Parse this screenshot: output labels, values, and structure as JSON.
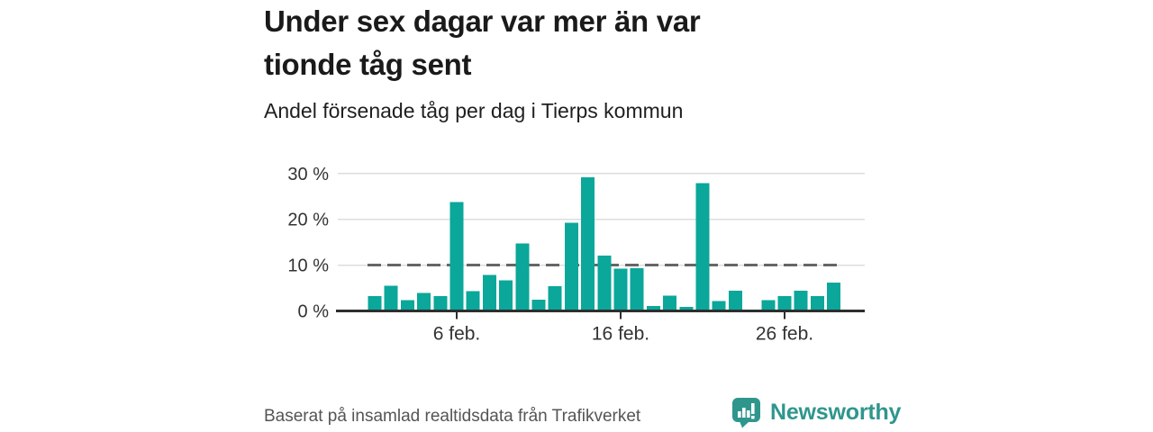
{
  "header": {
    "title": "Under sex dagar var mer än var tionde tåg sent",
    "subtitle": "Andel försenade tåg per dag i Tierps kommun"
  },
  "footer": {
    "source": "Baserat på insamlad realtidsdata från Trafikverket",
    "brand": "Newsworthy"
  },
  "colors": {
    "bar": "#0aa79a",
    "brand_teal": "#2f968d",
    "grid": "#dcdcdc",
    "axis": "#2e2e2e",
    "axis_text": "#333333",
    "reference_line": "#666666",
    "title_text": "#1a1a1a",
    "muted_text": "#555555"
  },
  "chart_data": {
    "type": "bar",
    "title": "Under sex dagar var mer än var tionde tåg sent",
    "subtitle": "Andel försenade tåg per dag i Tierps kommun",
    "categories": [
      "1 feb.",
      "2 feb.",
      "3 feb.",
      "4 feb.",
      "5 feb.",
      "6 feb.",
      "7 feb.",
      "8 feb.",
      "9 feb.",
      "10 feb.",
      "11 feb.",
      "12 feb.",
      "13 feb.",
      "14 feb.",
      "15 feb.",
      "16 feb.",
      "17 feb.",
      "18 feb.",
      "19 feb.",
      "20 feb.",
      "21 feb.",
      "22 feb.",
      "23 feb.",
      "24 feb.",
      "25 feb.",
      "26 feb.",
      "27 feb.",
      "28 feb.",
      "29 feb."
    ],
    "values": [
      3.2,
      5.5,
      2.4,
      3.9,
      3.2,
      23.8,
      4.3,
      7.9,
      6.7,
      14.7,
      2.5,
      5.4,
      19.3,
      29.2,
      12.1,
      9.2,
      9.3,
      1.1,
      3.3,
      0.9,
      27.9,
      2.2,
      4.4,
      null,
      2.4,
      3.2,
      4.4,
      3.2,
      6.2
    ],
    "unit": "%",
    "xlabel": "",
    "ylabel": "",
    "ylim": [
      0,
      30
    ],
    "grid": "horizontal",
    "legend": "none",
    "y_ticks": [
      {
        "value": 0,
        "label": "0 %"
      },
      {
        "value": 10,
        "label": "10 %"
      },
      {
        "value": 20,
        "label": "20 %"
      },
      {
        "value": 30,
        "label": "30 %"
      }
    ],
    "x_ticks": [
      {
        "day": 6,
        "label": "6 feb."
      },
      {
        "day": 16,
        "label": "16 feb."
      },
      {
        "day": 26,
        "label": "26 feb."
      }
    ],
    "reference_line": {
      "value": 10,
      "style": "dashed"
    }
  }
}
